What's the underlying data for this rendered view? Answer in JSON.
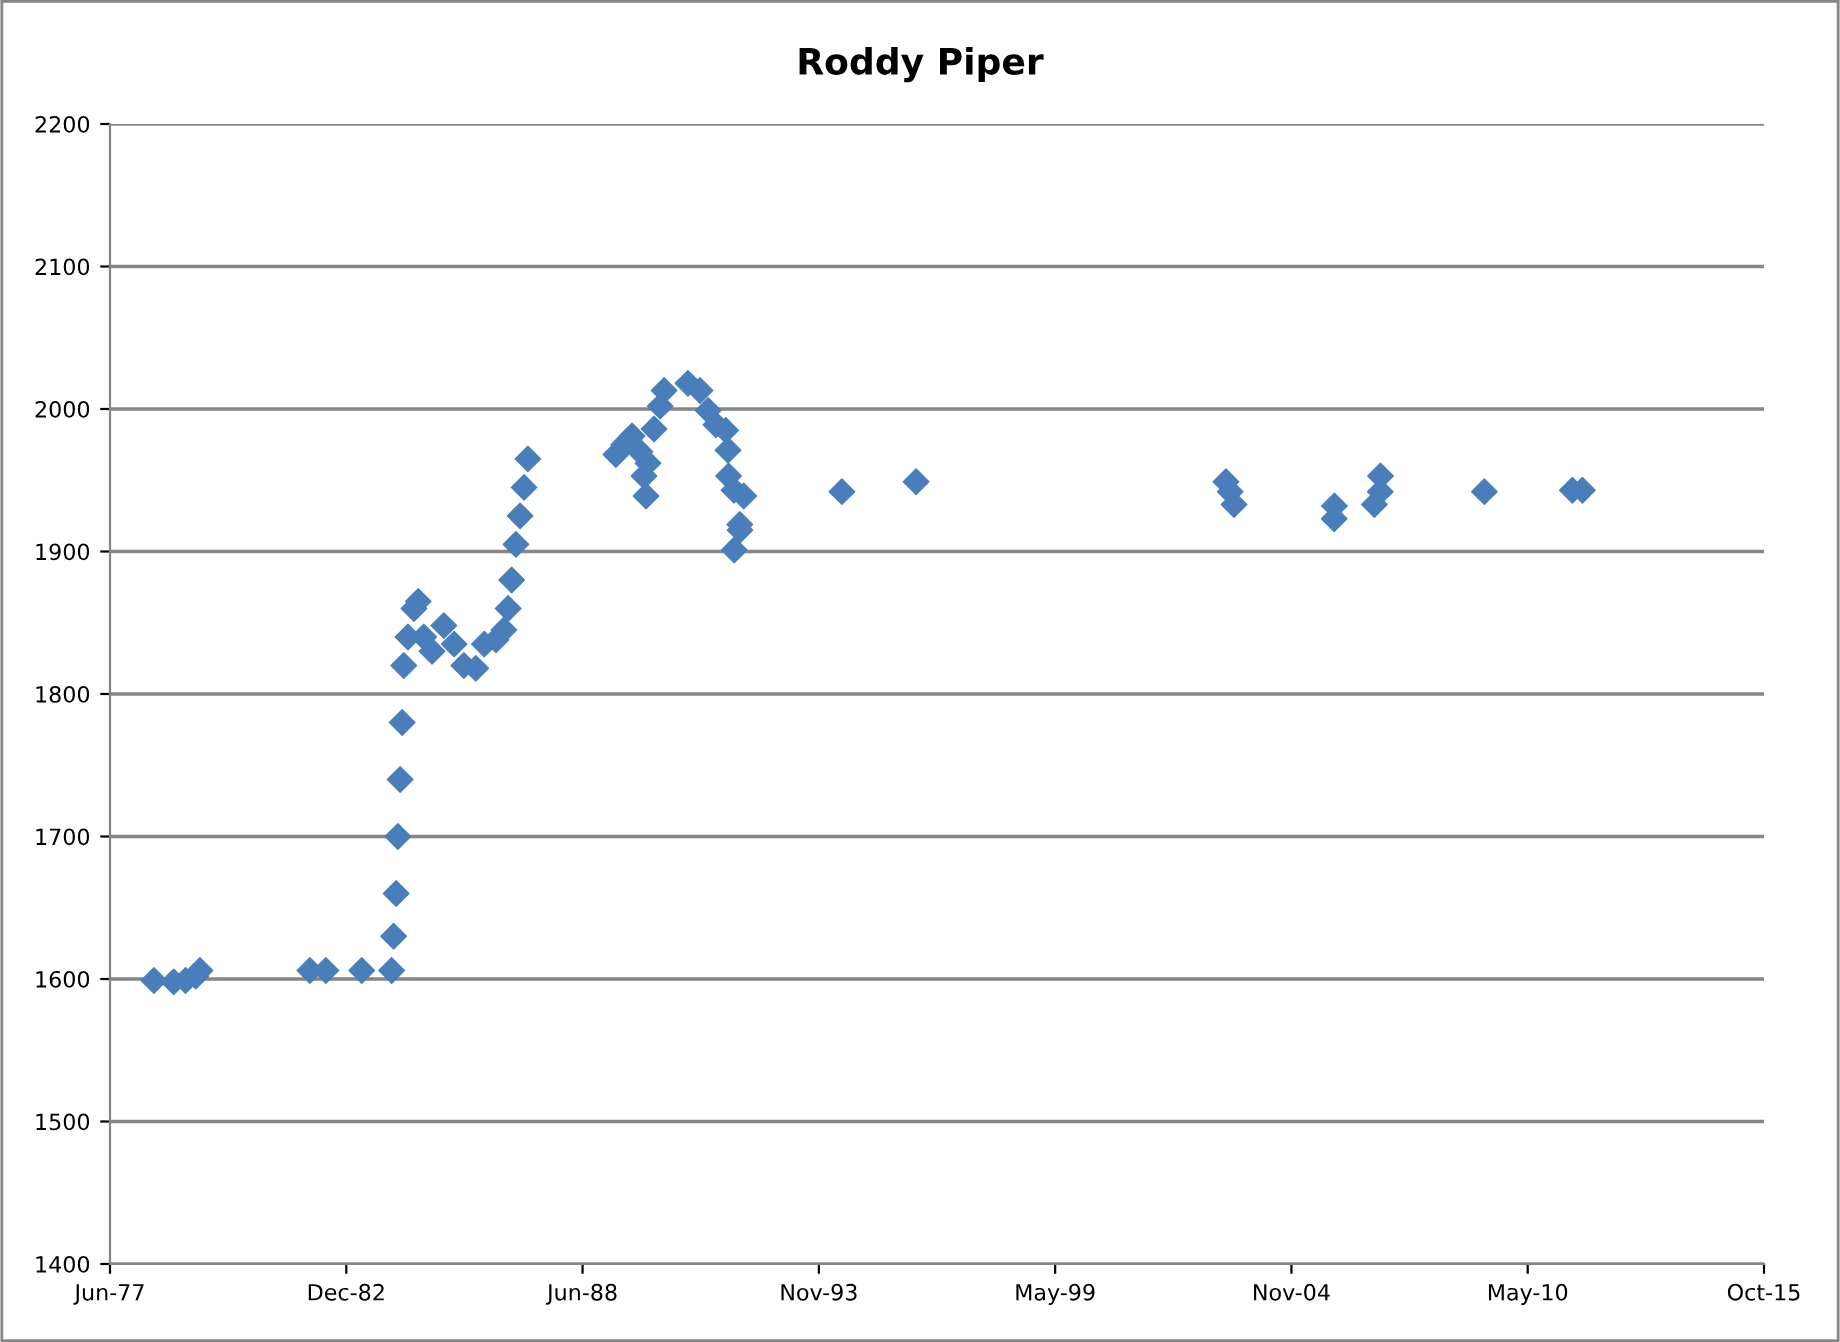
{
  "chart_data": {
    "type": "scatter",
    "title": "Roddy Piper",
    "marker": "diamond",
    "grid": "y",
    "legend": false,
    "xlim": [
      "1977-06-24",
      "2015-10-23"
    ],
    "xticks": [
      {
        "value": "1977-06-24",
        "label": "Jun-77"
      },
      {
        "value": "1982-12-15",
        "label": "Dec-82"
      },
      {
        "value": "1988-06-06",
        "label": "Jun-88"
      },
      {
        "value": "1993-11-27",
        "label": "Nov-93"
      },
      {
        "value": "1999-05-20",
        "label": "May-99"
      },
      {
        "value": "2004-11-09",
        "label": "Nov-04"
      },
      {
        "value": "2010-05-02",
        "label": "May-10"
      },
      {
        "value": "2015-10-23",
        "label": "Oct-15"
      }
    ],
    "ylim": [
      1400,
      2200
    ],
    "yticks": [
      1400,
      1500,
      1600,
      1700,
      1800,
      1900,
      2000,
      2100,
      2200
    ],
    "series": [
      {
        "color": "#4a7ebb",
        "x": [
          "1978-07-01",
          "1978-12-15",
          "1979-03-25",
          "1979-06-20",
          "1979-07-25",
          "1982-02-10",
          "1982-06-25",
          "1983-04-25",
          "1984-01-03",
          "1984-01-20",
          "1984-02-10",
          "1984-02-25",
          "1984-03-15",
          "1984-04-01",
          "1984-04-15",
          "1984-05-20",
          "1984-07-10",
          "1984-08-15",
          "1984-10-01",
          "1984-12-10",
          "1985-03-20",
          "1985-06-15",
          "1985-09-05",
          "1985-12-15",
          "1986-02-25",
          "1986-06-05",
          "1986-08-10",
          "1986-09-15",
          "1986-10-15",
          "1986-11-20",
          "1986-12-25",
          "1987-01-28",
          "1987-03-01",
          "1989-03-15",
          "1989-05-20",
          "1989-07-30",
          "1989-10-05",
          "1989-11-08",
          "1989-11-25",
          "1989-12-12",
          "1990-02-01",
          "1990-03-25",
          "1990-04-27",
          "1990-11-15",
          "1991-02-25",
          "1991-05-05",
          "1991-07-10",
          "1991-10-01",
          "1991-10-20",
          "1991-10-25",
          "1991-12-10",
          "1991-12-12",
          "1992-01-28",
          "1992-01-30",
          "1992-03-01",
          "1994-06-10",
          "1996-02-28",
          "2003-05-05",
          "2003-06-10",
          "2003-07-12",
          "2005-11-06",
          "2005-11-08",
          "2006-10-12",
          "2006-12-01",
          "2006-12-03",
          "2009-04-30",
          "2011-05-15",
          "2011-08-08"
        ],
        "values": [
          1599,
          1598,
          1599,
          1602,
          1606,
          1606,
          1606,
          1606,
          1606,
          1630,
          1660,
          1700,
          1740,
          1780,
          1820,
          1840,
          1860,
          1865,
          1840,
          1830,
          1848,
          1835,
          1820,
          1818,
          1835,
          1838,
          1845,
          1860,
          1880,
          1905,
          1925,
          1945,
          1965,
          1968,
          1975,
          1981,
          1970,
          1953,
          1939,
          1962,
          1986,
          2002,
          2013,
          2018,
          2013,
          1999,
          1989,
          1985,
          1971,
          1953,
          1943,
          1901,
          1919,
          1915,
          1939,
          1942,
          1949,
          1949,
          1942,
          1933,
          1923,
          1932,
          1933,
          1942,
          1953,
          1942,
          1943,
          1943
        ]
      }
    ]
  }
}
